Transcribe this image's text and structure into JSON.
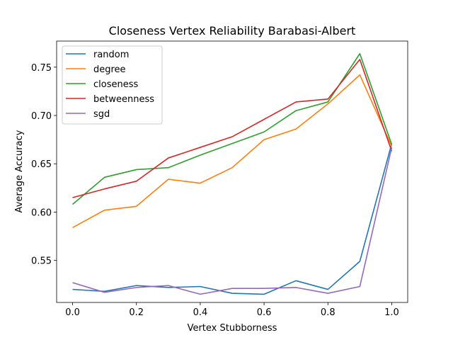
{
  "chart_data": {
    "type": "line",
    "title": "Closeness Vertex Reliability Barabasi-Albert",
    "xlabel": "Vertex Stubborness",
    "ylabel": "Average Accuracy",
    "x": [
      0.0,
      0.1,
      0.2,
      0.3,
      0.4,
      0.5,
      0.6,
      0.7,
      0.8,
      0.9,
      1.0
    ],
    "xlim": [
      -0.05,
      1.05
    ],
    "ylim": [
      0.5065,
      0.777
    ],
    "xticks": [
      0.0,
      0.2,
      0.4,
      0.6,
      0.8,
      1.0
    ],
    "xtick_labels": [
      "0.0",
      "0.2",
      "0.4",
      "0.6",
      "0.8",
      "1.0"
    ],
    "yticks": [
      0.55,
      0.6,
      0.65,
      0.7,
      0.75
    ],
    "ytick_labels": [
      "0.55",
      "0.60",
      "0.65",
      "0.70",
      "0.75"
    ],
    "grid": false,
    "legend_position": "top-left",
    "series": [
      {
        "name": "random",
        "color": "#1f77b4",
        "values": [
          0.52,
          0.518,
          0.524,
          0.522,
          0.523,
          0.516,
          0.515,
          0.529,
          0.52,
          0.549,
          0.671
        ]
      },
      {
        "name": "degree",
        "color": "#ff7f0e",
        "values": [
          0.584,
          0.602,
          0.606,
          0.634,
          0.63,
          0.646,
          0.675,
          0.686,
          0.712,
          0.742,
          0.668
        ]
      },
      {
        "name": "closeness",
        "color": "#2ca02c",
        "values": [
          0.608,
          0.636,
          0.644,
          0.646,
          0.659,
          0.671,
          0.683,
          0.705,
          0.714,
          0.764,
          0.67
        ]
      },
      {
        "name": "betweenness",
        "color": "#d62728",
        "values": [
          0.615,
          0.624,
          0.632,
          0.656,
          0.667,
          0.678,
          0.696,
          0.714,
          0.717,
          0.758,
          0.663
        ]
      },
      {
        "name": "sgd",
        "color": "#9467bd",
        "values": [
          0.527,
          0.517,
          0.522,
          0.524,
          0.515,
          0.521,
          0.521,
          0.522,
          0.516,
          0.523,
          0.667
        ]
      }
    ]
  }
}
